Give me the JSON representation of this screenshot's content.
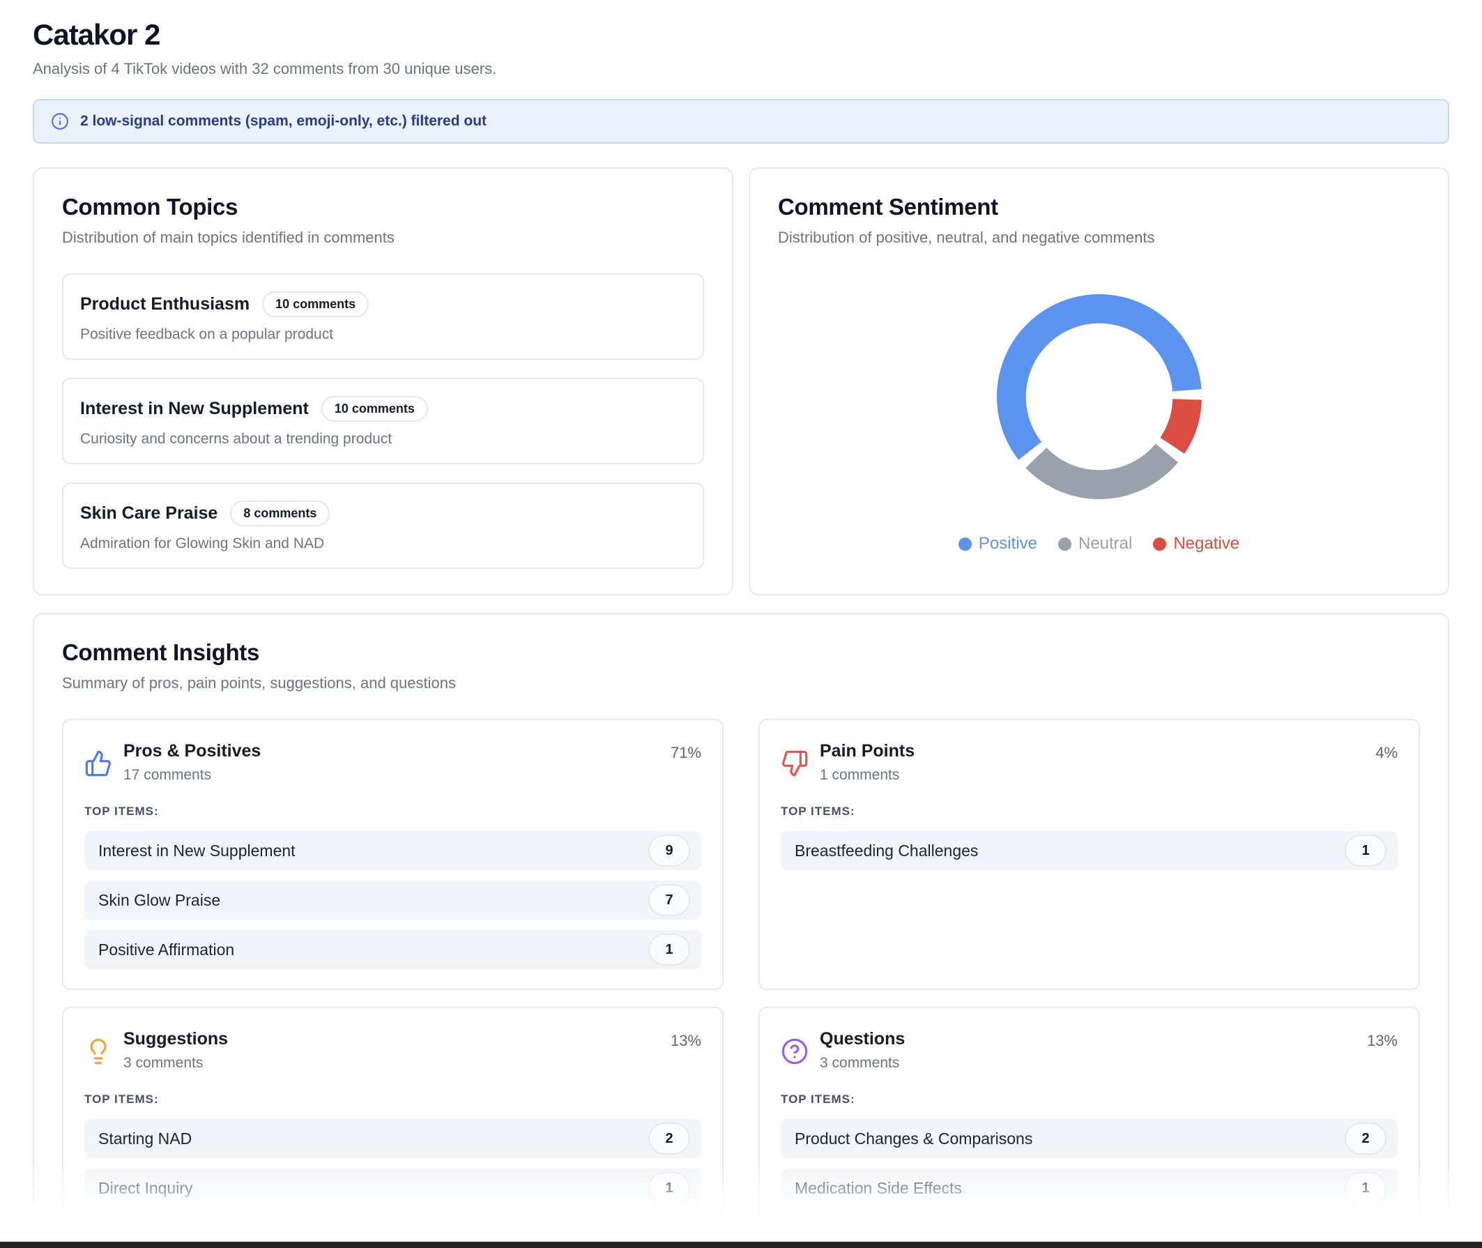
{
  "page": {
    "title": "Catakor 2",
    "subtitle": "Analysis of 4 TikTok videos with 32 comments from 30 unique users.",
    "banner": {
      "text": "2 low-signal comments (spam, emoji-only, etc.) filtered out",
      "icon": "info-icon",
      "icon_color": "#4e6fe3"
    }
  },
  "topics": {
    "title": "Common Topics",
    "subtitle": "Distribution of main topics identified in comments",
    "items": [
      {
        "name": "Product Enthusiasm",
        "badge": "10 comments",
        "description": "Positive feedback on a popular product"
      },
      {
        "name": "Interest in New Supplement",
        "badge": "10 comments",
        "description": "Curiosity and concerns about a trending product"
      },
      {
        "name": "Skin Care Praise",
        "badge": "8 comments",
        "description": "Admiration for Glowing Skin and NAD"
      }
    ]
  },
  "sentiment": {
    "title": "Comment Sentiment",
    "subtitle": "Distribution of positive, neutral, and negative comments",
    "legend": [
      {
        "label": "Positive",
        "color": "#5b93ee"
      },
      {
        "label": "Neutral",
        "color": "#99a1ad"
      },
      {
        "label": "Negative",
        "color": "#db4c42"
      }
    ]
  },
  "chart_data": {
    "type": "pie",
    "subtype": "donut",
    "title": "Comment Sentiment",
    "legend_position": "bottom",
    "start_angle": -128,
    "gap_degrees": 6,
    "total_comments": 32,
    "slices": [
      {
        "label": "Positive",
        "value": 20,
        "percent_estimate": 62.5,
        "color": "#5b93ee"
      },
      {
        "label": "Negative",
        "value": 3,
        "percent_estimate": 9.4,
        "color": "#db4c42"
      },
      {
        "label": "Neutral",
        "value": 9,
        "percent_estimate": 28.1,
        "color": "#99a1ad"
      }
    ]
  },
  "insights": {
    "title": "Comment Insights",
    "subtitle": "Summary of pros, pain points, suggestions, and questions",
    "top_items_label": "TOP ITEMS:",
    "cards": [
      {
        "icon": "thumbs-up-icon",
        "icon_color": "#4a7de8",
        "title": "Pros & Positives",
        "comments_label": "17 comments",
        "percent": "71%",
        "items": [
          {
            "label": "Interest in New Supplement",
            "count": "9"
          },
          {
            "label": "Skin Glow Praise",
            "count": "7"
          },
          {
            "label": "Positive Affirmation",
            "count": "1"
          }
        ]
      },
      {
        "icon": "thumbs-down-icon",
        "icon_color": "#e8534a",
        "title": "Pain Points",
        "comments_label": "1 comments",
        "percent": "4%",
        "items": [
          {
            "label": "Breastfeeding Challenges",
            "count": "1"
          }
        ]
      },
      {
        "icon": "lightbulb-icon",
        "icon_color": "#f0a63a",
        "title": "Suggestions",
        "comments_label": "3 comments",
        "percent": "13%",
        "items": [
          {
            "label": "Starting NAD",
            "count": "2"
          },
          {
            "label": "Direct Inquiry",
            "count": "1"
          }
        ]
      },
      {
        "icon": "question-circle-icon",
        "icon_color": "#9b5cf6",
        "title": "Questions",
        "comments_label": "3 comments",
        "percent": "13%",
        "items": [
          {
            "label": "Product Changes & Comparisons",
            "count": "2"
          },
          {
            "label": "Medication Side Effects",
            "count": "1"
          }
        ]
      }
    ]
  }
}
